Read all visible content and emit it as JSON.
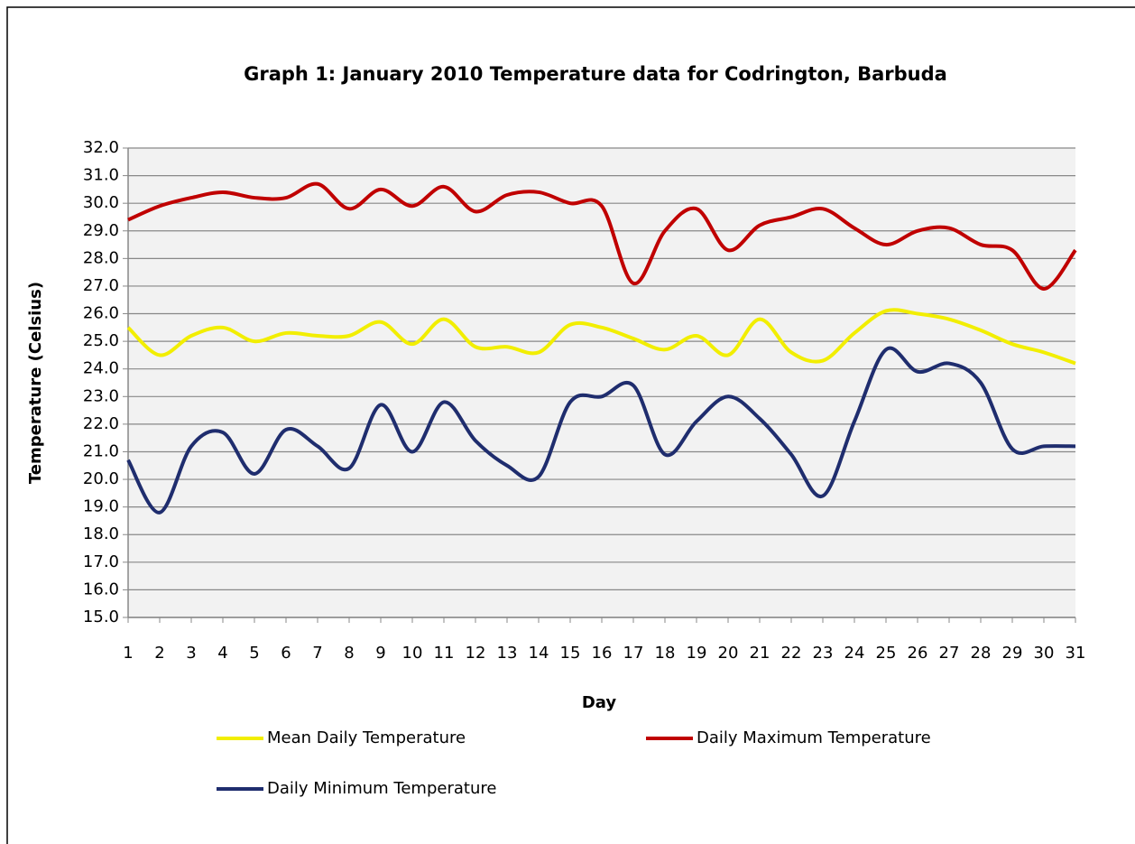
{
  "chart_data": {
    "type": "line",
    "title": "Graph 1: January  2010 Temperature data for Codrington, Barbuda",
    "x_label": "Day",
    "y_label": "Temperature (Celsius)",
    "x": [
      1,
      2,
      3,
      4,
      5,
      6,
      7,
      8,
      9,
      10,
      11,
      12,
      13,
      14,
      15,
      16,
      17,
      18,
      19,
      20,
      21,
      22,
      23,
      24,
      25,
      26,
      27,
      28,
      29,
      30,
      31
    ],
    "xlim": [
      1,
      31
    ],
    "xticks": [
      1,
      2,
      3,
      4,
      5,
      6,
      7,
      8,
      9,
      10,
      11,
      12,
      13,
      14,
      15,
      16,
      17,
      18,
      19,
      20,
      21,
      22,
      23,
      24,
      25,
      26,
      27,
      28,
      29,
      30,
      31
    ],
    "ylim": [
      15,
      32
    ],
    "yticks": [
      {
        "value": 15,
        "label": "15.0"
      },
      {
        "value": 16,
        "label": "16.0"
      },
      {
        "value": 17,
        "label": "17.0"
      },
      {
        "value": 18,
        "label": "18.0"
      },
      {
        "value": 19,
        "label": "19.0"
      },
      {
        "value": 20,
        "label": "20.0"
      },
      {
        "value": 21,
        "label": "21.0"
      },
      {
        "value": 22,
        "label": "22.0"
      },
      {
        "value": 23,
        "label": "23.0"
      },
      {
        "value": 24,
        "label": "24.0"
      },
      {
        "value": 25,
        "label": "25.0"
      },
      {
        "value": 26,
        "label": "26.0"
      },
      {
        "value": 27,
        "label": "27.0"
      },
      {
        "value": 28,
        "label": "28.0"
      },
      {
        "value": 29,
        "label": "29.0"
      },
      {
        "value": 30,
        "label": "30.0"
      },
      {
        "value": 31,
        "label": "31.0"
      },
      {
        "value": 32,
        "label": "32.0"
      }
    ],
    "grid": true,
    "smooth": true,
    "series": [
      {
        "name": "Mean Daily Temperature",
        "color": "#f2ee00",
        "values": [
          25.5,
          24.5,
          25.2,
          25.5,
          25.0,
          25.3,
          25.2,
          25.2,
          25.7,
          24.9,
          25.8,
          24.8,
          24.8,
          24.6,
          25.6,
          25.5,
          25.1,
          24.7,
          25.2,
          24.5,
          25.8,
          24.6,
          24.3,
          25.3,
          26.1,
          26.0,
          25.8,
          25.4,
          24.9,
          24.6,
          24.2
        ]
      },
      {
        "name": "Daily Maximum Temperature",
        "color": "#c00000",
        "values": [
          29.4,
          29.9,
          30.2,
          30.4,
          30.2,
          30.2,
          30.7,
          29.8,
          30.5,
          29.9,
          30.6,
          29.7,
          30.3,
          30.4,
          30.0,
          29.9,
          27.1,
          29.0,
          29.8,
          28.3,
          29.2,
          29.5,
          29.8,
          29.1,
          28.5,
          29.0,
          29.1,
          28.5,
          28.3,
          26.9,
          28.3
        ]
      },
      {
        "name": "Daily Minimum Temperature",
        "color": "#1f2d6e",
        "values": [
          20.7,
          18.8,
          21.2,
          21.7,
          20.2,
          21.8,
          21.2,
          20.4,
          22.7,
          21.0,
          22.8,
          21.4,
          20.5,
          20.1,
          22.8,
          23.0,
          23.4,
          20.9,
          22.1,
          23.0,
          22.2,
          20.9,
          19.4,
          22.1,
          24.7,
          23.9,
          24.2,
          23.5,
          21.1,
          21.2,
          21.2
        ]
      }
    ]
  }
}
